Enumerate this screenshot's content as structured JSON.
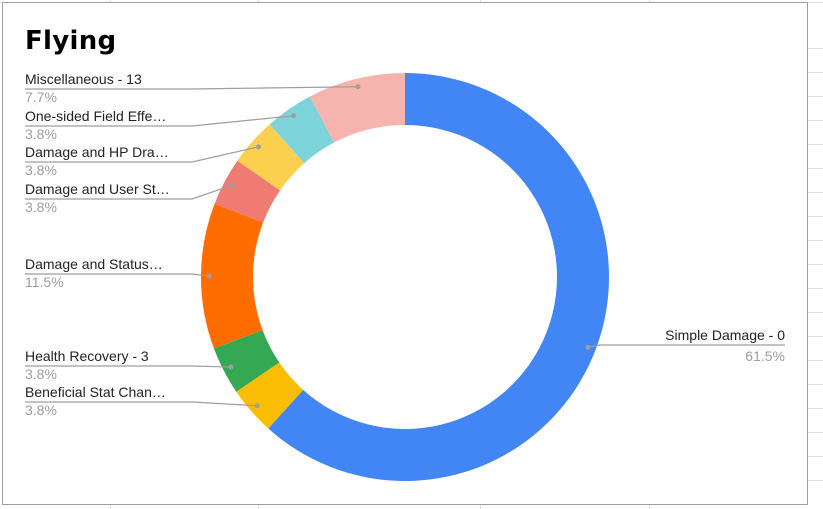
{
  "chart_data": {
    "type": "pie",
    "donut": true,
    "title": "Flying",
    "legend": "none",
    "slices": [
      {
        "label": "Simple Damage - 0",
        "display_label": "Simple Damage - 0",
        "percent": 61.5,
        "percent_label": "61.5%",
        "color": "#4285f4"
      },
      {
        "label": "Beneficial Stat Changes",
        "display_label": "Beneficial Stat Chan…",
        "percent": 3.8,
        "percent_label": "3.8%",
        "color": "#fbbc04"
      },
      {
        "label": "Health Recovery - 3",
        "display_label": "Health Recovery - 3",
        "percent": 3.8,
        "percent_label": "3.8%",
        "color": "#34a853"
      },
      {
        "label": "Damage and Status",
        "display_label": "Damage and Status…",
        "percent": 11.5,
        "percent_label": "11.5%",
        "color": "#ff6d01"
      },
      {
        "label": "Damage and User Stat Changes",
        "display_label": "Damage and User St…",
        "percent": 3.8,
        "percent_label": "3.8%",
        "color": "#f07b72"
      },
      {
        "label": "Damage and HP Drain",
        "display_label": "Damage and HP Dra…",
        "percent": 3.8,
        "percent_label": "3.8%",
        "color": "#fcd04f"
      },
      {
        "label": "One-sided Field Effects",
        "display_label": "One-sided Field Effe…",
        "percent": 3.8,
        "percent_label": "3.8%",
        "color": "#7dd3da"
      },
      {
        "label": "Miscellaneous - 13",
        "display_label": "Miscellaneous - 13",
        "percent": 7.7,
        "percent_label": "7.7%",
        "color": "#f7b4ae"
      }
    ]
  },
  "colors": {
    "leader_line": "#9e9e9e",
    "grid_line": "#e0e0e0",
    "frame": "#9e9e9e"
  }
}
